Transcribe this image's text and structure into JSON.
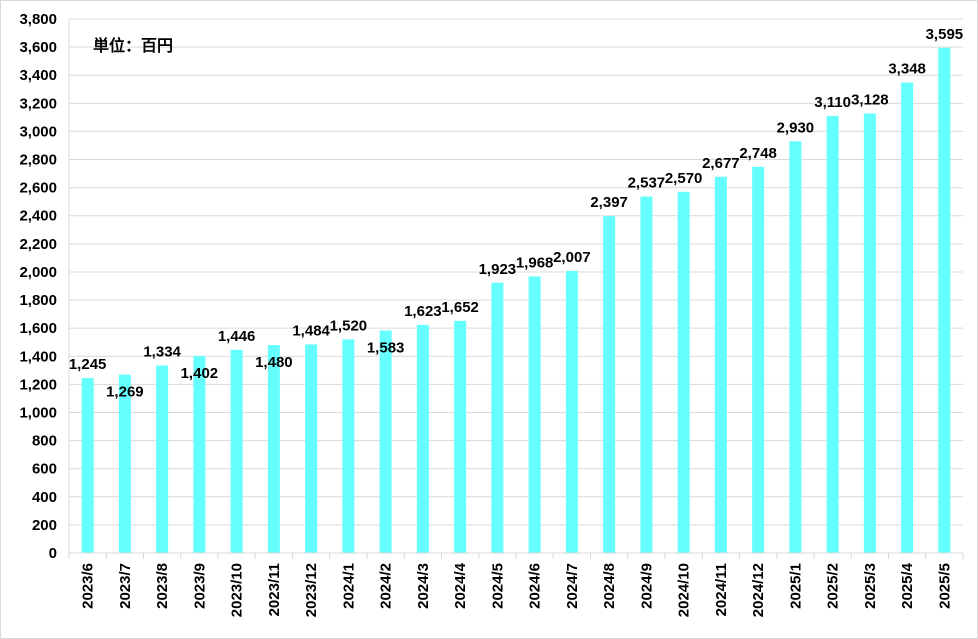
{
  "chart_data": {
    "type": "bar",
    "unit_note": "単位：百円",
    "categories": [
      "2023/6",
      "2023/7",
      "2023/8",
      "2023/9",
      "2023/10",
      "2023/11",
      "2023/12",
      "2024/1",
      "2024/2",
      "2024/3",
      "2024/4",
      "2024/5",
      "2024/6",
      "2024/7",
      "2024/8",
      "2024/9",
      "2024/10",
      "2024/11",
      "2024/12",
      "2025/1",
      "2025/2",
      "2025/3",
      "2025/4",
      "2025/5"
    ],
    "values": [
      1245,
      1269,
      1334,
      1402,
      1446,
      1480,
      1484,
      1520,
      1583,
      1623,
      1652,
      1923,
      1968,
      2007,
      2397,
      2537,
      2570,
      2677,
      2748,
      2930,
      3110,
      3128,
      3348,
      3595
    ],
    "value_labels": [
      "1,245",
      "1,269",
      "1,334",
      "1,402",
      "1,446",
      "1,480",
      "1,484",
      "1,520",
      "1,583",
      "1,623",
      "1,652",
      "1,923",
      "1,968",
      "2,007",
      "2,397",
      "2,537",
      "2,570",
      "2,677",
      "2,748",
      "2,930",
      "3,110",
      "3,128",
      "3,348",
      "3,595"
    ],
    "label_position": [
      "above",
      "below",
      "above",
      "below",
      "above",
      "below",
      "above",
      "above",
      "below",
      "above",
      "above",
      "above",
      "above",
      "above",
      "above",
      "above",
      "above",
      "above",
      "above",
      "above",
      "above",
      "above",
      "above",
      "above"
    ],
    "y_ticks": [
      0,
      200,
      400,
      600,
      800,
      1000,
      1200,
      1400,
      1600,
      1800,
      2000,
      2200,
      2400,
      2600,
      2800,
      3000,
      3200,
      3400,
      3600,
      3800
    ],
    "y_tick_labels": [
      "0",
      "200",
      "400",
      "600",
      "800",
      "1,000",
      "1,200",
      "1,400",
      "1,600",
      "1,800",
      "2,000",
      "2,200",
      "2,400",
      "2,600",
      "2,800",
      "3,000",
      "3,200",
      "3,400",
      "3,600",
      "3,800"
    ],
    "ylim": [
      0,
      3800
    ],
    "bar_color": "#66ffff",
    "grid": true,
    "grid_color": "#d9d9d9",
    "legend": "none"
  }
}
